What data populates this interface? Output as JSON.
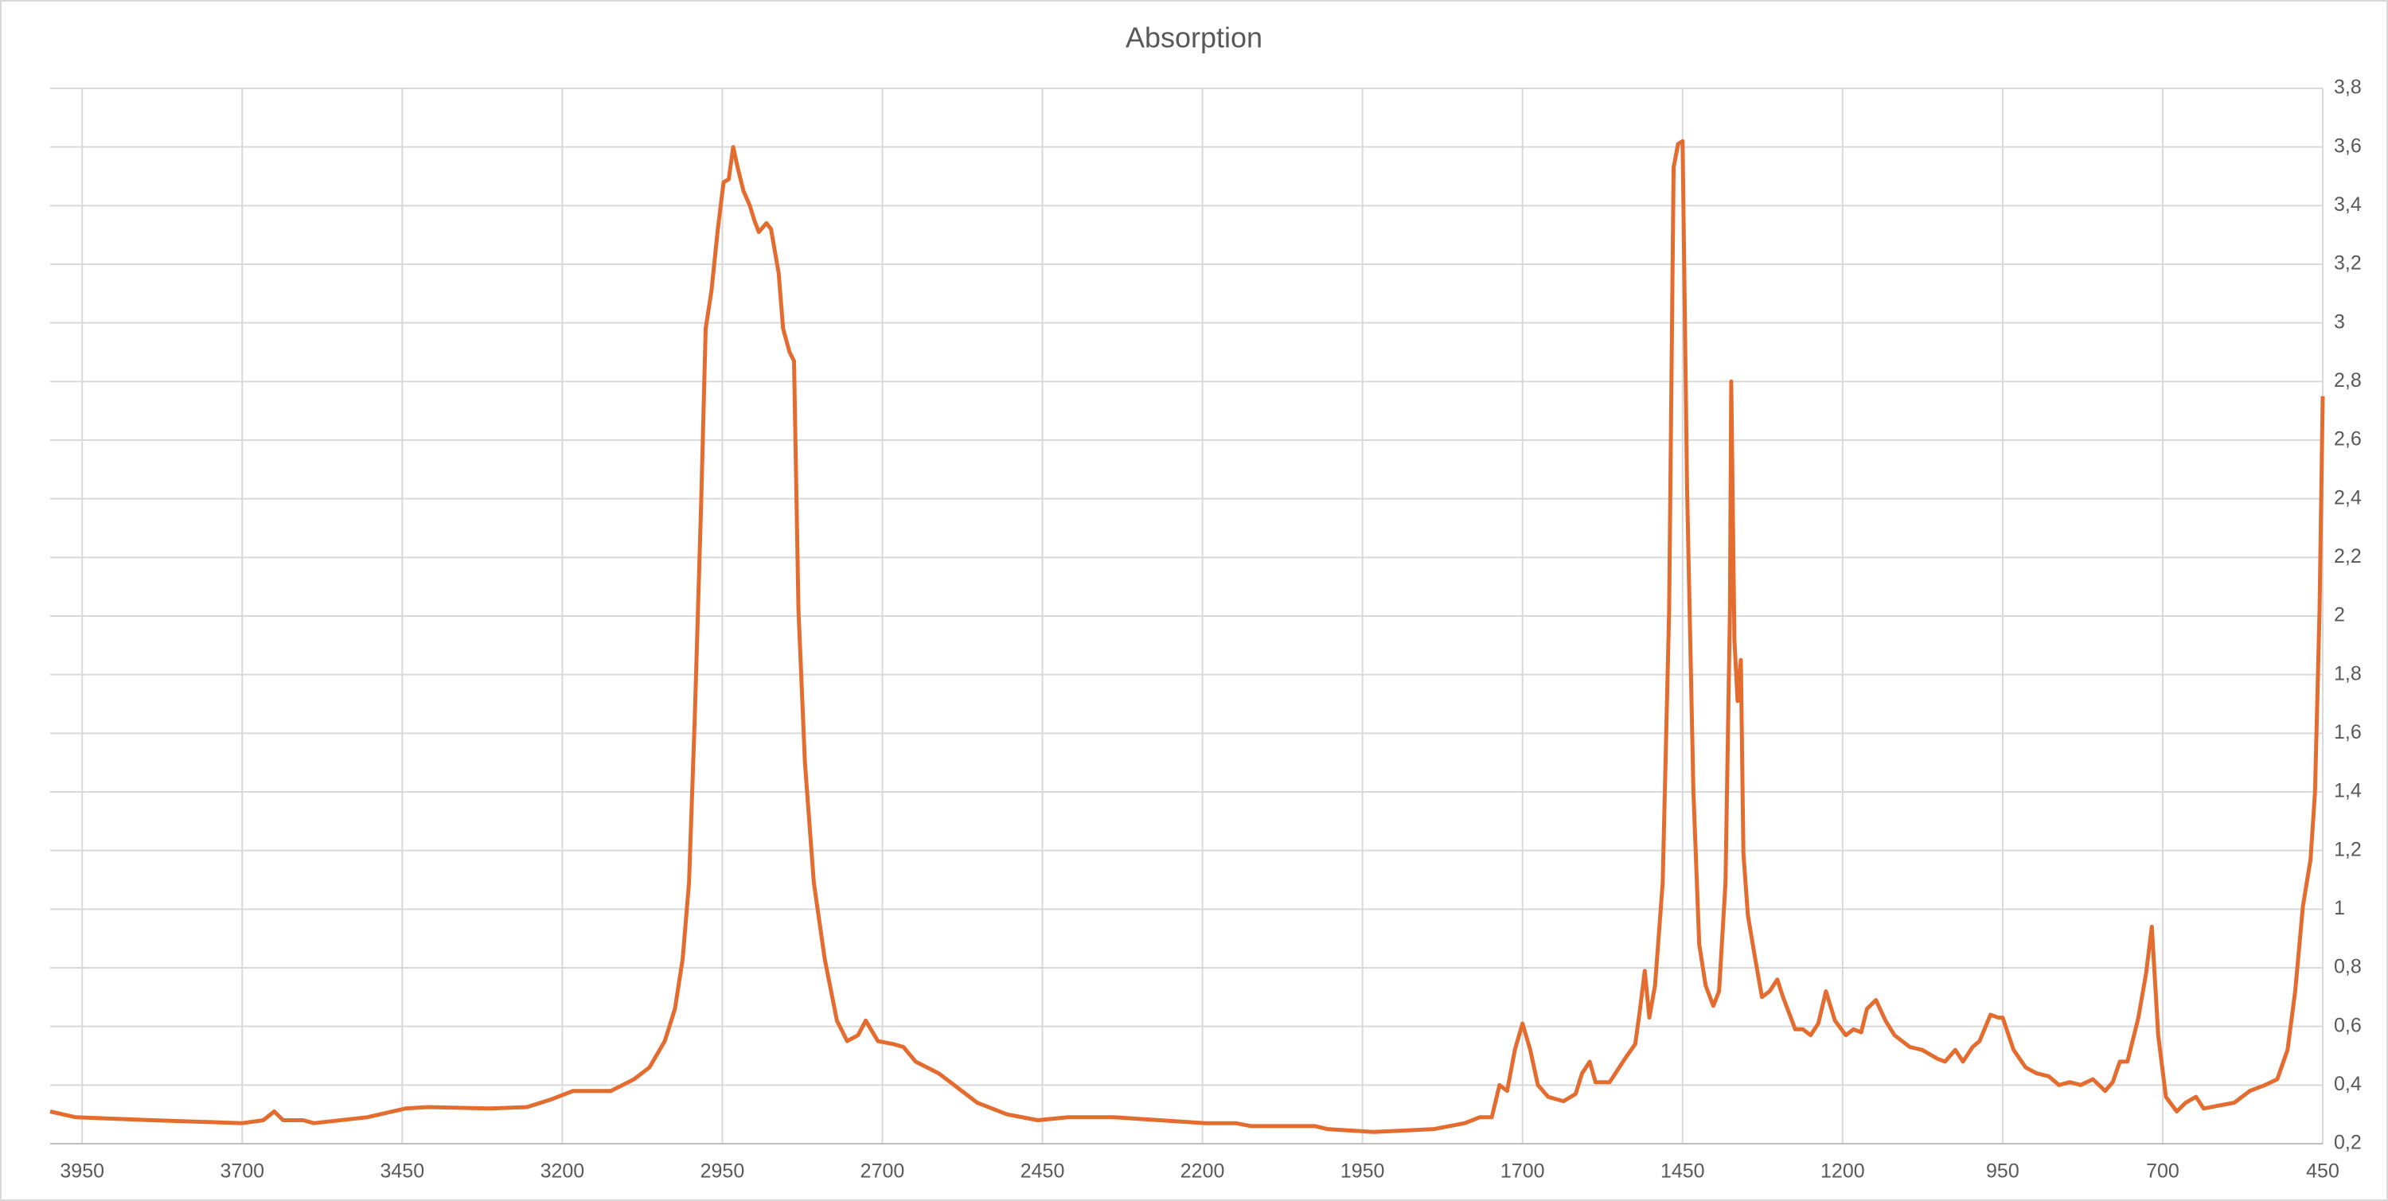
{
  "chart_data": {
    "type": "line",
    "title": "Absorption",
    "x": [
      4000,
      3960,
      3840,
      3700,
      3667,
      3650,
      3636,
      3605,
      3588,
      3505,
      3445,
      3410,
      3314,
      3255,
      3219,
      3183,
      3124,
      3088,
      3064,
      3040,
      3024,
      3012,
      3002,
      2993,
      2983,
      2976,
      2967,
      2957,
      2948,
      2940,
      2933,
      2926,
      2917,
      2907,
      2900,
      2893,
      2881,
      2874,
      2862,
      2855,
      2845,
      2838,
      2831,
      2821,
      2807,
      2790,
      2771,
      2755,
      2738,
      2726,
      2707,
      2683,
      2667,
      2648,
      2612,
      2588,
      2552,
      2505,
      2457,
      2410,
      2338,
      2267,
      2195,
      2148,
      2124,
      2052,
      2024,
      2005,
      1933,
      1838,
      1790,
      1767,
      1748,
      1736,
      1724,
      1712,
      1700,
      1688,
      1676,
      1660,
      1636,
      1617,
      1607,
      1595,
      1586,
      1564,
      1540,
      1524,
      1517,
      1509,
      1502,
      1493,
      1481,
      1471,
      1464,
      1457,
      1450,
      1443,
      1433,
      1424,
      1414,
      1402,
      1393,
      1383,
      1376,
      1374,
      1369,
      1364,
      1359,
      1355,
      1348,
      1338,
      1326,
      1314,
      1302,
      1293,
      1274,
      1262,
      1250,
      1238,
      1226,
      1212,
      1195,
      1183,
      1171,
      1162,
      1148,
      1133,
      1119,
      1095,
      1076,
      1052,
      1040,
      1024,
      1012,
      997,
      986,
      969,
      957,
      950,
      933,
      914,
      897,
      878,
      862,
      845,
      828,
      809,
      790,
      778,
      767,
      755,
      738,
      726,
      717,
      707,
      695,
      678,
      664,
      648,
      636,
      612,
      588,
      564,
      540,
      521,
      505,
      493,
      481,
      469,
      462,
      455,
      450
    ],
    "series": [
      {
        "name": "Absorption",
        "color": "#e46c2f",
        "values": [
          0.31,
          0.29,
          0.28,
          0.27,
          0.28,
          0.31,
          0.28,
          0.28,
          0.27,
          0.29,
          0.32,
          0.325,
          0.32,
          0.325,
          0.35,
          0.38,
          0.38,
          0.42,
          0.46,
          0.55,
          0.66,
          0.83,
          1.09,
          1.66,
          2.39,
          2.98,
          3.11,
          3.32,
          3.48,
          3.49,
          3.6,
          3.53,
          3.45,
          3.4,
          3.35,
          3.31,
          3.34,
          3.32,
          3.17,
          2.98,
          2.9,
          2.87,
          2.02,
          1.5,
          1.09,
          0.83,
          0.62,
          0.55,
          0.57,
          0.62,
          0.55,
          0.54,
          0.53,
          0.48,
          0.44,
          0.4,
          0.34,
          0.3,
          0.28,
          0.29,
          0.29,
          0.28,
          0.27,
          0.27,
          0.26,
          0.26,
          0.26,
          0.25,
          0.24,
          0.25,
          0.27,
          0.29,
          0.29,
          0.4,
          0.38,
          0.52,
          0.61,
          0.52,
          0.4,
          0.36,
          0.345,
          0.37,
          0.44,
          0.48,
          0.41,
          0.41,
          0.49,
          0.54,
          0.65,
          0.79,
          0.63,
          0.74,
          1.09,
          2.02,
          3.53,
          3.61,
          3.62,
          2.44,
          1.4,
          0.88,
          0.74,
          0.67,
          0.72,
          1.09,
          2.02,
          2.8,
          1.92,
          1.71,
          1.85,
          1.19,
          0.98,
          0.85,
          0.7,
          0.72,
          0.76,
          0.7,
          0.59,
          0.59,
          0.57,
          0.61,
          0.72,
          0.62,
          0.57,
          0.59,
          0.58,
          0.66,
          0.69,
          0.62,
          0.57,
          0.53,
          0.52,
          0.49,
          0.48,
          0.52,
          0.48,
          0.53,
          0.55,
          0.64,
          0.63,
          0.63,
          0.52,
          0.46,
          0.44,
          0.43,
          0.4,
          0.41,
          0.4,
          0.42,
          0.38,
          0.41,
          0.48,
          0.48,
          0.63,
          0.78,
          0.94,
          0.57,
          0.36,
          0.31,
          0.34,
          0.36,
          0.32,
          0.33,
          0.34,
          0.38,
          0.4,
          0.42,
          0.52,
          0.72,
          1.01,
          1.17,
          1.4,
          2.02,
          2.75
        ]
      }
    ],
    "xlim": [
      4000,
      450
    ],
    "xticks": [
      3950,
      3700,
      3450,
      3200,
      2950,
      2700,
      2450,
      2200,
      1950,
      1700,
      1450,
      1200,
      950,
      700,
      450
    ],
    "ylim": [
      0.2,
      3.8
    ],
    "yticks": [
      {
        "value": 0.2,
        "label": "0,2"
      },
      {
        "value": 0.4,
        "label": "0,4"
      },
      {
        "value": 0.6,
        "label": "0,6"
      },
      {
        "value": 0.8,
        "label": "0,8"
      },
      1,
      {
        "value": 1.2,
        "label": "1,2"
      },
      {
        "value": 1.4,
        "label": "1,4"
      },
      {
        "value": 1.6,
        "label": "1,6"
      },
      {
        "value": 1.8,
        "label": "1,8"
      },
      2,
      {
        "value": 2.2,
        "label": "2,2"
      },
      {
        "value": 2.4,
        "label": "2,4"
      },
      {
        "value": 2.6,
        "label": "2,6"
      },
      {
        "value": 2.8,
        "label": "2,8"
      },
      3,
      {
        "value": 3.2,
        "label": "3,2"
      },
      {
        "value": 3.4,
        "label": "3,4"
      },
      {
        "value": 3.6,
        "label": "3,6"
      },
      {
        "value": 3.8,
        "label": "3,8"
      }
    ],
    "y_axis_side": "right",
    "grid": true
  }
}
